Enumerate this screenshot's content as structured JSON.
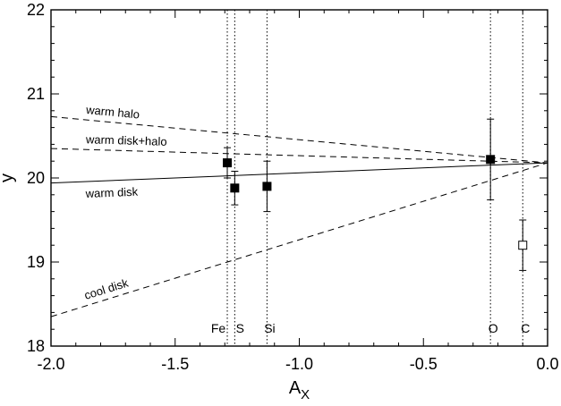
{
  "chart_data": {
    "type": "scatter",
    "xlabel": "A",
    "xlabel_sub": "X",
    "ylabel": "y",
    "xlim": [
      -2.0,
      0.0
    ],
    "ylim": [
      18,
      22
    ],
    "grid": false,
    "x_ticks": [
      {
        "value": -2.0,
        "label": "-2.0"
      },
      {
        "value": -1.5,
        "label": "-1.5"
      },
      {
        "value": -1.0,
        "label": "-1.0"
      },
      {
        "value": -0.5,
        "label": "-0.5"
      },
      {
        "value": 0.0,
        "label": "0.0"
      }
    ],
    "y_ticks": [
      {
        "value": 18,
        "label": "18"
      },
      {
        "value": 19,
        "label": "19"
      },
      {
        "value": 20,
        "label": "20"
      },
      {
        "value": 21,
        "label": "21"
      },
      {
        "value": 22,
        "label": "22"
      }
    ],
    "model_lines": [
      {
        "label": "warm halo",
        "style": "dashed",
        "points": [
          [
            -2.0,
            20.73
          ],
          [
            0.0,
            20.18
          ]
        ]
      },
      {
        "label": "warm disk+halo",
        "style": "dashed",
        "points": [
          [
            -2.0,
            20.35
          ],
          [
            0.0,
            20.18
          ]
        ]
      },
      {
        "label": "warm disk",
        "style": "solid",
        "points": [
          [
            -2.0,
            19.94
          ],
          [
            0.0,
            20.18
          ]
        ]
      },
      {
        "label": "cool disk",
        "style": "dashed",
        "points": [
          [
            -2.0,
            18.35
          ],
          [
            0.0,
            20.18
          ]
        ]
      }
    ],
    "element_lines": [
      {
        "label": "Fe",
        "x": -1.29
      },
      {
        "label": "S",
        "x": -1.26
      },
      {
        "label": "Si",
        "x": -1.13
      },
      {
        "label": "O",
        "x": -0.23
      },
      {
        "label": "C",
        "x": -0.1
      }
    ],
    "points": [
      {
        "x": -1.29,
        "y": 20.18,
        "err": 0.18,
        "filled": true
      },
      {
        "x": -1.26,
        "y": 19.88,
        "err": 0.2,
        "filled": true
      },
      {
        "x": -1.13,
        "y": 19.9,
        "err": 0.3,
        "filled": true
      },
      {
        "x": -0.23,
        "y": 20.22,
        "err": 0.48,
        "filled": true
      },
      {
        "x": -0.1,
        "y": 19.2,
        "err": 0.3,
        "filled": false
      }
    ]
  }
}
